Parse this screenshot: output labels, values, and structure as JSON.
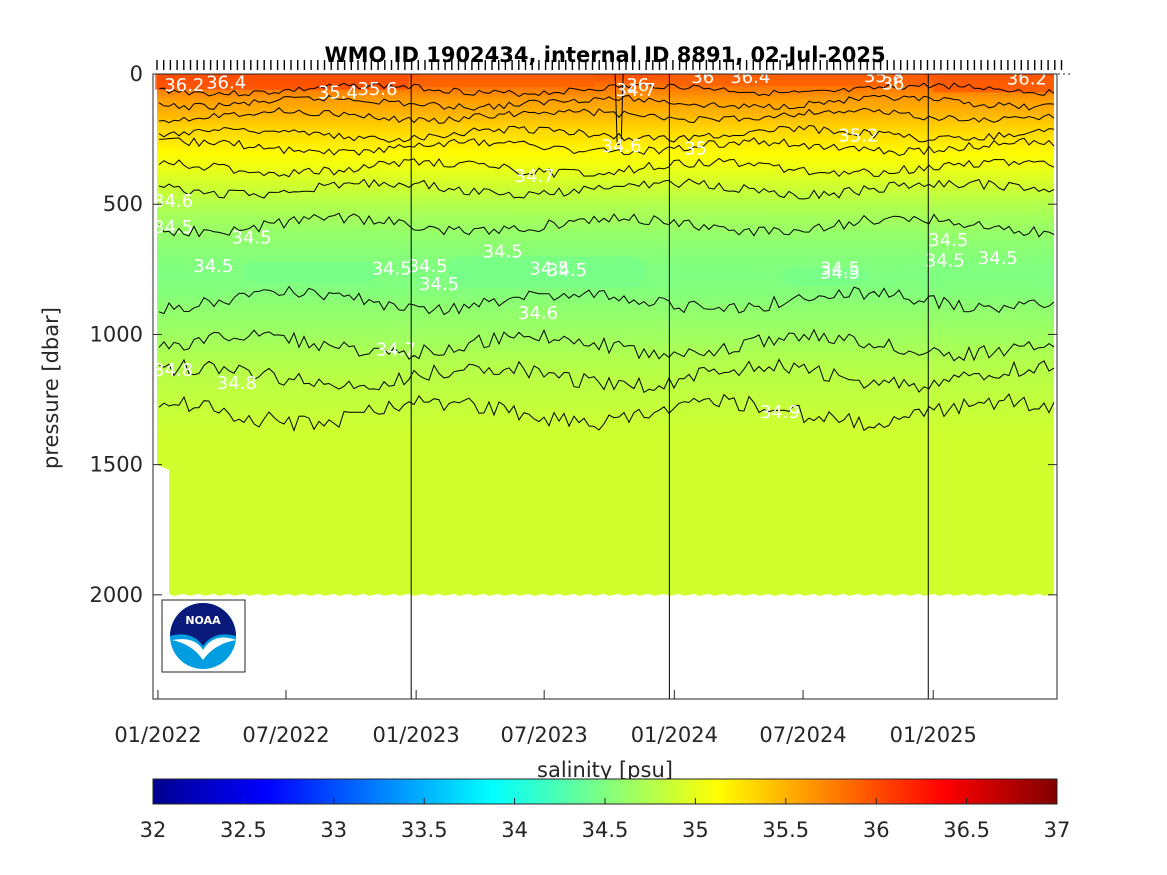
{
  "chart_data": {
    "type": "heatmap",
    "title": "WMO ID 1902434, internal ID 8891, 02-Jul-2025",
    "xlabel": "",
    "ylabel": "pressure [dbar]",
    "colorbar_label": "salinity [psu]",
    "x_range": [
      "2021-12-25",
      "2025-06-25"
    ],
    "y_range": [
      0,
      2400
    ],
    "y_reversed": true,
    "x_ticks": [
      "01/2022",
      "07/2022",
      "01/2023",
      "07/2023",
      "01/2024",
      "07/2024",
      "01/2025"
    ],
    "x_tick_dates": [
      "2022-01-01",
      "2022-07-01",
      "2023-01-01",
      "2023-07-01",
      "2024-01-01",
      "2024-07-01",
      "2025-01-01"
    ],
    "y_ticks": [
      0,
      500,
      1000,
      1500,
      2000
    ],
    "year_boundaries": [
      "2022-12-25",
      "2023-12-25",
      "2024-12-25"
    ],
    "colorbar": {
      "min": 32,
      "max": 37,
      "ticks": [
        "32",
        "32.5",
        "33",
        "33.5",
        "34",
        "34.5",
        "35",
        "35.5",
        "36",
        "36.5",
        "37"
      ],
      "colormap": "jet"
    },
    "data_max_pressure": 2000,
    "profile": {
      "pressure": [
        0,
        50,
        100,
        150,
        200,
        250,
        300,
        350,
        400,
        450,
        500,
        550,
        600,
        650,
        700,
        750,
        800,
        850,
        900,
        1000,
        1050,
        1100,
        1200,
        1300,
        1350,
        1400,
        2000
      ],
      "salinity": [
        36.0,
        35.8,
        35.6,
        35.5,
        35.35,
        35.25,
        35.15,
        35.05,
        34.95,
        34.85,
        34.75,
        34.68,
        34.62,
        34.57,
        34.53,
        34.5,
        34.5,
        34.53,
        34.58,
        34.65,
        34.7,
        34.75,
        34.8,
        34.85,
        34.88,
        34.9,
        34.9
      ]
    },
    "contour_levels": [
      35.6,
      35.4,
      35.2,
      35.0,
      34.8,
      34.7,
      34.6,
      34.5,
      34.6,
      34.7,
      34.8,
      34.85
    ],
    "contour_depths": [
      60,
      110,
      160,
      230,
      280,
      360,
      440,
      580,
      870,
      1040,
      1160,
      1300
    ],
    "contour_labels": [
      {
        "text": "36.2",
        "date": "2022-01-10",
        "p": 65
      },
      {
        "text": "36.4",
        "date": "2022-03-10",
        "p": 55
      },
      {
        "text": "35.4",
        "date": "2022-08-15",
        "p": 95
      },
      {
        "text": "35.6",
        "date": "2022-10-10",
        "p": 80
      },
      {
        "text": "36",
        "date": "2023-10-25",
        "p": 65
      },
      {
        "text": "34.7",
        "date": "2023-10-10",
        "p": 85
      },
      {
        "text": "36",
        "date": "2024-01-25",
        "p": 35
      },
      {
        "text": "36.4",
        "date": "2024-03-20",
        "p": 35
      },
      {
        "text": "35.8",
        "date": "2024-09-25",
        "p": 30
      },
      {
        "text": "36",
        "date": "2024-10-20",
        "p": 60
      },
      {
        "text": "36.2",
        "date": "2025-04-15",
        "p": 40
      },
      {
        "text": "34.6",
        "date": "2023-09-20",
        "p": 300
      },
      {
        "text": "35",
        "date": "2024-01-15",
        "p": 310
      },
      {
        "text": "35.2",
        "date": "2024-08-20",
        "p": 260
      },
      {
        "text": "34.7",
        "date": "2023-05-20",
        "p": 415
      },
      {
        "text": "34.6",
        "date": "2021-12-25",
        "p": 510
      },
      {
        "text": "34.5",
        "date": "2021-12-25",
        "p": 610
      },
      {
        "text": "34.5",
        "date": "2022-04-15",
        "p": 650
      },
      {
        "text": "34.5",
        "date": "2022-02-20",
        "p": 760
      },
      {
        "text": "34.5",
        "date": "2022-10-30",
        "p": 770
      },
      {
        "text": "34.5",
        "date": "2022-12-20",
        "p": 760
      },
      {
        "text": "34.5",
        "date": "2023-01-05",
        "p": 830
      },
      {
        "text": "34.5",
        "date": "2023-04-05",
        "p": 705
      },
      {
        "text": "34.5",
        "date": "2023-06-10",
        "p": 770
      },
      {
        "text": "34.5",
        "date": "2023-07-05",
        "p": 775
      },
      {
        "text": "34.5",
        "date": "2024-07-25",
        "p": 770
      },
      {
        "text": "34.5",
        "date": "2024-07-25",
        "p": 785
      },
      {
        "text": "34.5",
        "date": "2024-12-25",
        "p": 660
      },
      {
        "text": "34.5",
        "date": "2024-12-20",
        "p": 740
      },
      {
        "text": "34.5",
        "date": "2025-03-05",
        "p": 730
      },
      {
        "text": "34.6",
        "date": "2023-05-25",
        "p": 940
      },
      {
        "text": "34.7",
        "date": "2022-11-05",
        "p": 1080
      },
      {
        "text": "34.8",
        "date": "2021-12-25",
        "p": 1160
      },
      {
        "text": "34.8",
        "date": "2022-03-25",
        "p": 1210
      },
      {
        "text": "34.9",
        "date": "2024-05-01",
        "p": 1320
      }
    ]
  },
  "logo": {
    "text": "NOAA",
    "colors": {
      "top": "#0a1a7a",
      "bottom": "#009de0",
      "bird": "#ffffff"
    }
  }
}
